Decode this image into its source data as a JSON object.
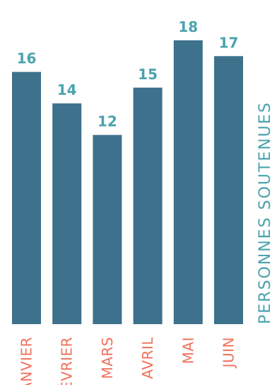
{
  "chart_data": {
    "type": "bar",
    "categories": [
      "JANVIER",
      "FÉVRIER",
      "MARS",
      "AVRIL",
      "MAI",
      "JUIN"
    ],
    "values": [
      16,
      14,
      12,
      15,
      18,
      17
    ],
    "title": "",
    "xlabel": "",
    "ylabel": "PERSONNES SOUTENUES",
    "ylim": [
      0,
      20
    ],
    "grid": false,
    "legend": "none",
    "colors": {
      "bar": "#3d718c",
      "value_label": "#4aa3ad",
      "category_label": "#f0705a",
      "ylabel": "#4aa3ad"
    }
  }
}
